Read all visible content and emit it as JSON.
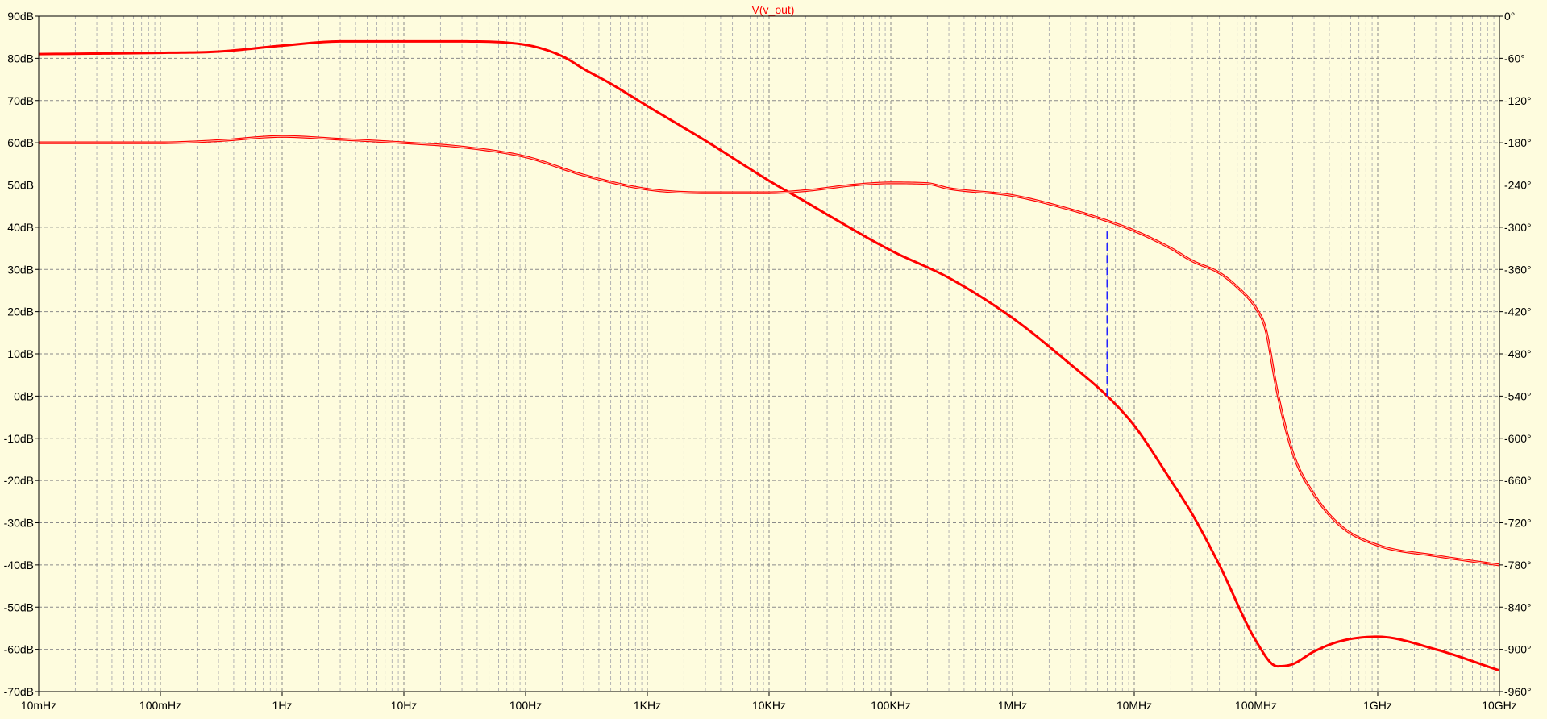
{
  "chart_data": {
    "type": "line",
    "title": "V(v_out)",
    "x_scale": "log",
    "x_range_hz": [
      0.01,
      10000000000
    ],
    "x_tick_values_hz": [
      0.01,
      0.1,
      1,
      10,
      100,
      1000,
      10000,
      100000,
      1000000,
      10000000,
      100000000,
      1000000000,
      10000000000
    ],
    "x_tick_labels": [
      "10mHz",
      "100mHz",
      "1Hz",
      "10Hz",
      "100Hz",
      "1KHz",
      "10KHz",
      "100KHz",
      "1MHz",
      "10MHz",
      "100MHz",
      "1GHz",
      "10GHz"
    ],
    "y_left_range_db": [
      -70,
      90
    ],
    "y_left_tick_values": [
      90,
      80,
      70,
      60,
      50,
      40,
      30,
      20,
      10,
      0,
      -10,
      -20,
      -30,
      -40,
      -50,
      -60,
      -70
    ],
    "y_left_tick_labels": [
      "90dB",
      "80dB",
      "70dB",
      "60dB",
      "50dB",
      "40dB",
      "30dB",
      "20dB",
      "10dB",
      "0dB",
      "-10dB",
      "-20dB",
      "-30dB",
      "-40dB",
      "-50dB",
      "-60dB",
      "-70dB"
    ],
    "y_right_range_deg": [
      -960,
      0
    ],
    "y_right_tick_values": [
      0,
      -60,
      -120,
      -180,
      -240,
      -300,
      -360,
      -420,
      -480,
      -540,
      -600,
      -660,
      -720,
      -780,
      -840,
      -900,
      -960
    ],
    "y_right_tick_labels": [
      "0°",
      "-60°",
      "-120°",
      "-180°",
      "-240°",
      "-300°",
      "-360°",
      "-420°",
      "-480°",
      "-540°",
      "-600°",
      "-660°",
      "-720°",
      "-780°",
      "-840°",
      "-900°",
      "-960°"
    ],
    "grid": true,
    "series": [
      {
        "role": "magnitude",
        "axis": "left",
        "color": "#ff0000",
        "x_hz": [
          0.01,
          0.1,
          0.3,
          1,
          3,
          10,
          30,
          100,
          200,
          300,
          500,
          1000,
          3000,
          10000,
          20000,
          30000,
          100000,
          300000,
          1000000,
          3000000,
          6000000,
          10000000,
          20000000,
          30000000,
          50000000,
          100000000,
          150000000,
          200000000,
          300000000,
          500000000,
          1000000000,
          3000000000,
          10000000000
        ],
        "y": [
          81,
          81.3,
          81.6,
          83,
          84,
          84,
          84,
          83.2,
          80.5,
          77.5,
          74,
          68.7,
          60.5,
          51,
          46,
          43,
          34.5,
          28,
          18.5,
          7.5,
          0,
          -7,
          -20,
          -28,
          -40,
          -58,
          -64,
          -63.5,
          -60.5,
          -58,
          -57,
          -60,
          -65
        ]
      },
      {
        "role": "phase",
        "axis": "right",
        "color": "#ff0000",
        "x_hz": [
          0.01,
          0.1,
          0.3,
          1,
          3,
          10,
          30,
          100,
          300,
          1000,
          3000,
          10000,
          20000,
          50000,
          100000,
          200000,
          300000,
          1000000,
          3000000,
          6000000,
          10000000,
          20000000,
          30000000,
          50000000,
          70000000,
          100000000,
          120000000,
          150000000,
          200000000,
          300000000,
          500000000,
          1000000000,
          3000000000,
          10000000000
        ],
        "y": [
          -180,
          -180,
          -177,
          -171,
          -175,
          -180,
          -186,
          -200,
          -226,
          -246,
          -251,
          -251,
          -248,
          -240,
          -237,
          -238,
          -245,
          -255,
          -275,
          -291,
          -305,
          -330,
          -348,
          -365,
          -385,
          -415,
          -445,
          -535,
          -620,
          -680,
          -725,
          -752,
          -767,
          -780
        ]
      }
    ],
    "cursor": {
      "style": "dashed",
      "color": "#2222ff",
      "x_hz": 6000000,
      "from_db": 0,
      "to_db": 39
    }
  }
}
